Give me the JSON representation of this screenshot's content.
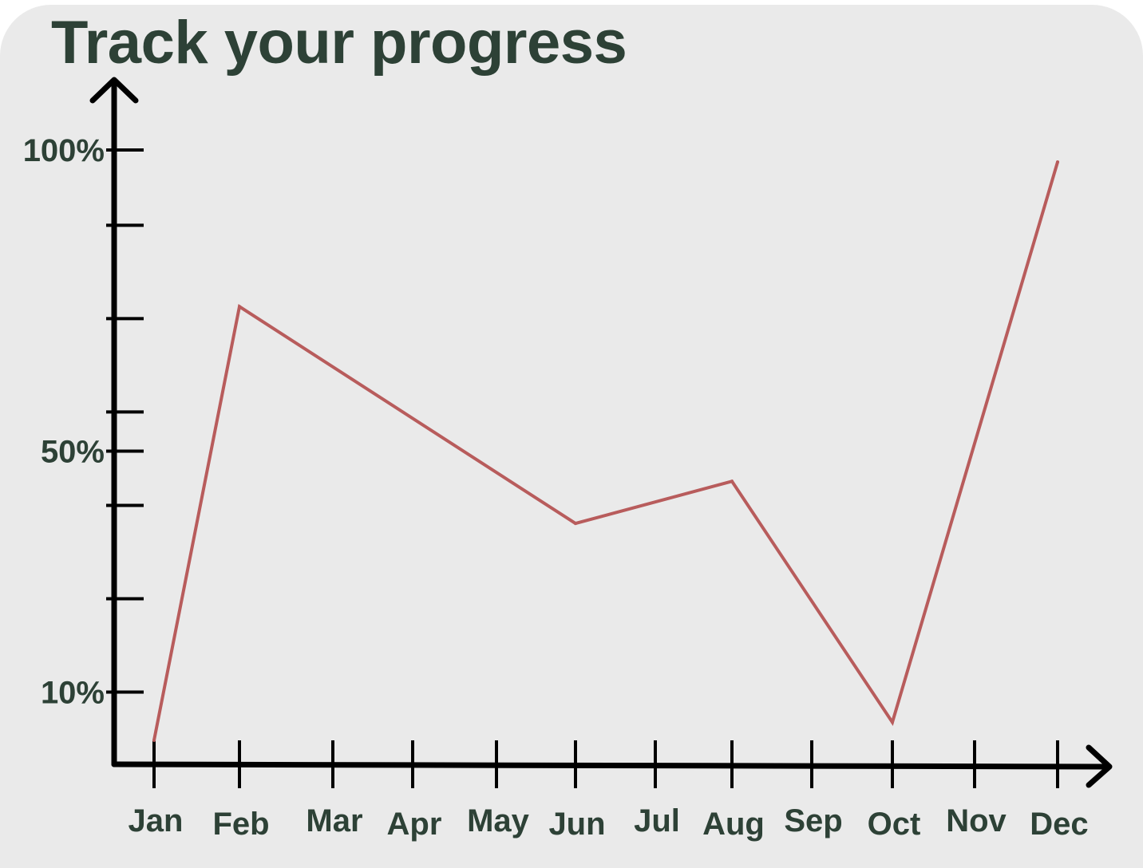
{
  "chart_data": {
    "type": "line",
    "title": "Track your progress",
    "categories": [
      "Jan",
      "Feb",
      "Mar",
      "Apr",
      "May",
      "Jun",
      "Jul",
      "Aug",
      "Sep",
      "Oct",
      "Nov",
      "Dec"
    ],
    "y_tick_labels": [
      "100%",
      "50%",
      "10%"
    ],
    "y_tick_values": [
      100,
      50,
      10
    ],
    "y_minor_ticks": [
      87.5,
      72,
      56.5,
      41,
      25.5
    ],
    "series": [
      {
        "points": [
          {
            "x": "Jan",
            "y": 2
          },
          {
            "x": "Feb",
            "y": 74
          },
          {
            "x": "Jun",
            "y": 38
          },
          {
            "x": "Aug",
            "y": 45
          },
          {
            "x": "Oct",
            "y": 5
          },
          {
            "x": "Dec",
            "y": 98
          }
        ]
      }
    ],
    "ylim": [
      0,
      100
    ],
    "grid": false,
    "colors": {
      "line": "#b85c5c",
      "axis": "#000000",
      "text": "#2d4136",
      "background": "#eaeaea"
    }
  }
}
